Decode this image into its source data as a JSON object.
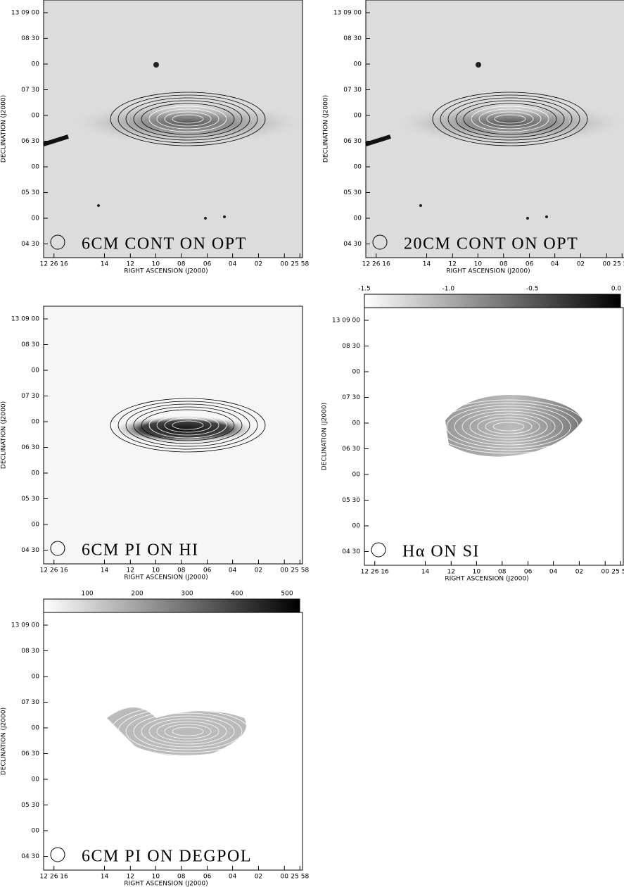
{
  "axes": {
    "xlabel": "RIGHT ASCENSION (J2000)",
    "ylabel": "DECLINATION (J2000)",
    "xticks": [
      "12 26 16",
      "14",
      "12",
      "10",
      "08",
      "06",
      "04",
      "02",
      "00",
      "25 58"
    ],
    "yticks": [
      "13 09 00",
      "08 30",
      "00",
      "07 30",
      "00",
      "06 30",
      "00",
      "05 30",
      "00",
      "04 30"
    ]
  },
  "panels": [
    {
      "label": "6CM CONT ON OPT"
    },
    {
      "label": "20CM CONT ON OPT"
    },
    {
      "label": "6CM PI ON HI"
    },
    {
      "label": "Hα ON SI",
      "colorbar": [
        "-1.5",
        "-1.0",
        "-0.5",
        "0.0"
      ]
    },
    {
      "label": "6CM PI ON DEGPOL",
      "colorbar": [
        "100",
        "200",
        "300",
        "400",
        "500"
      ]
    }
  ]
}
